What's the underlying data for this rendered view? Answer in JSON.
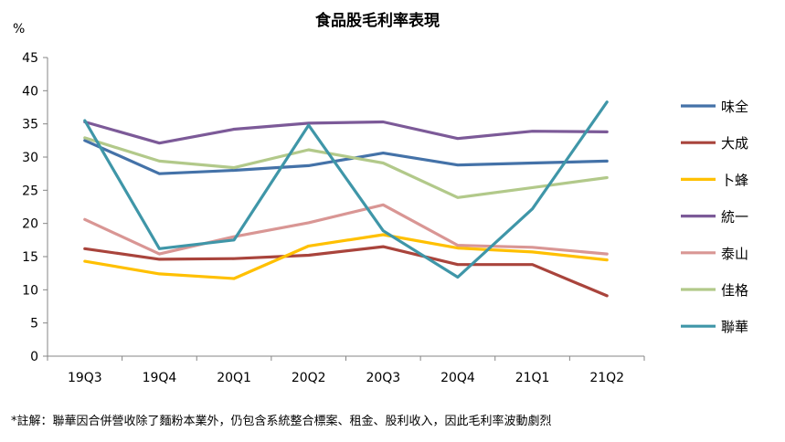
{
  "chart_data": {
    "type": "line",
    "title": "食品股毛利率表現",
    "ylabel": "%",
    "xlabel": "",
    "categories": [
      "19Q3",
      "19Q4",
      "20Q1",
      "20Q2",
      "20Q3",
      "20Q4",
      "21Q1",
      "21Q2"
    ],
    "ylim": [
      0,
      45
    ],
    "yticks": [
      0,
      5,
      10,
      15,
      20,
      25,
      30,
      35,
      40,
      45
    ],
    "grid": false,
    "legend": "right",
    "series": [
      {
        "name": "味全",
        "color": "#4472a8",
        "values": [
          32.5,
          27.5,
          28.0,
          28.7,
          30.6,
          28.8,
          29.1,
          29.4
        ]
      },
      {
        "name": "大成",
        "color": "#a9443c",
        "values": [
          16.2,
          14.6,
          14.7,
          15.2,
          16.5,
          13.8,
          13.8,
          9.1
        ]
      },
      {
        "name": "卜蜂",
        "color": "#ffc000",
        "values": [
          14.3,
          12.4,
          11.7,
          16.6,
          18.3,
          16.3,
          15.7,
          14.5
        ]
      },
      {
        "name": "統一",
        "color": "#7c5a98",
        "values": [
          35.3,
          32.1,
          34.2,
          35.1,
          35.3,
          32.8,
          33.9,
          33.8
        ]
      },
      {
        "name": "泰山",
        "color": "#d99694",
        "values": [
          20.6,
          15.4,
          18.0,
          20.1,
          22.8,
          16.7,
          16.4,
          15.4
        ]
      },
      {
        "name": "佳格",
        "color": "#b2c98a",
        "values": [
          32.9,
          29.4,
          28.4,
          31.1,
          29.1,
          23.9,
          25.4,
          26.9
        ]
      },
      {
        "name": "聯華",
        "color": "#3f96a8",
        "values": [
          35.5,
          16.2,
          17.5,
          34.8,
          18.9,
          11.9,
          22.2,
          38.3
        ]
      }
    ]
  },
  "footnote": "*註解：聯華因合併營收除了麵粉本業外，仍包含系統整合標案、租金、股利收入，因此毛利率波動劇烈"
}
